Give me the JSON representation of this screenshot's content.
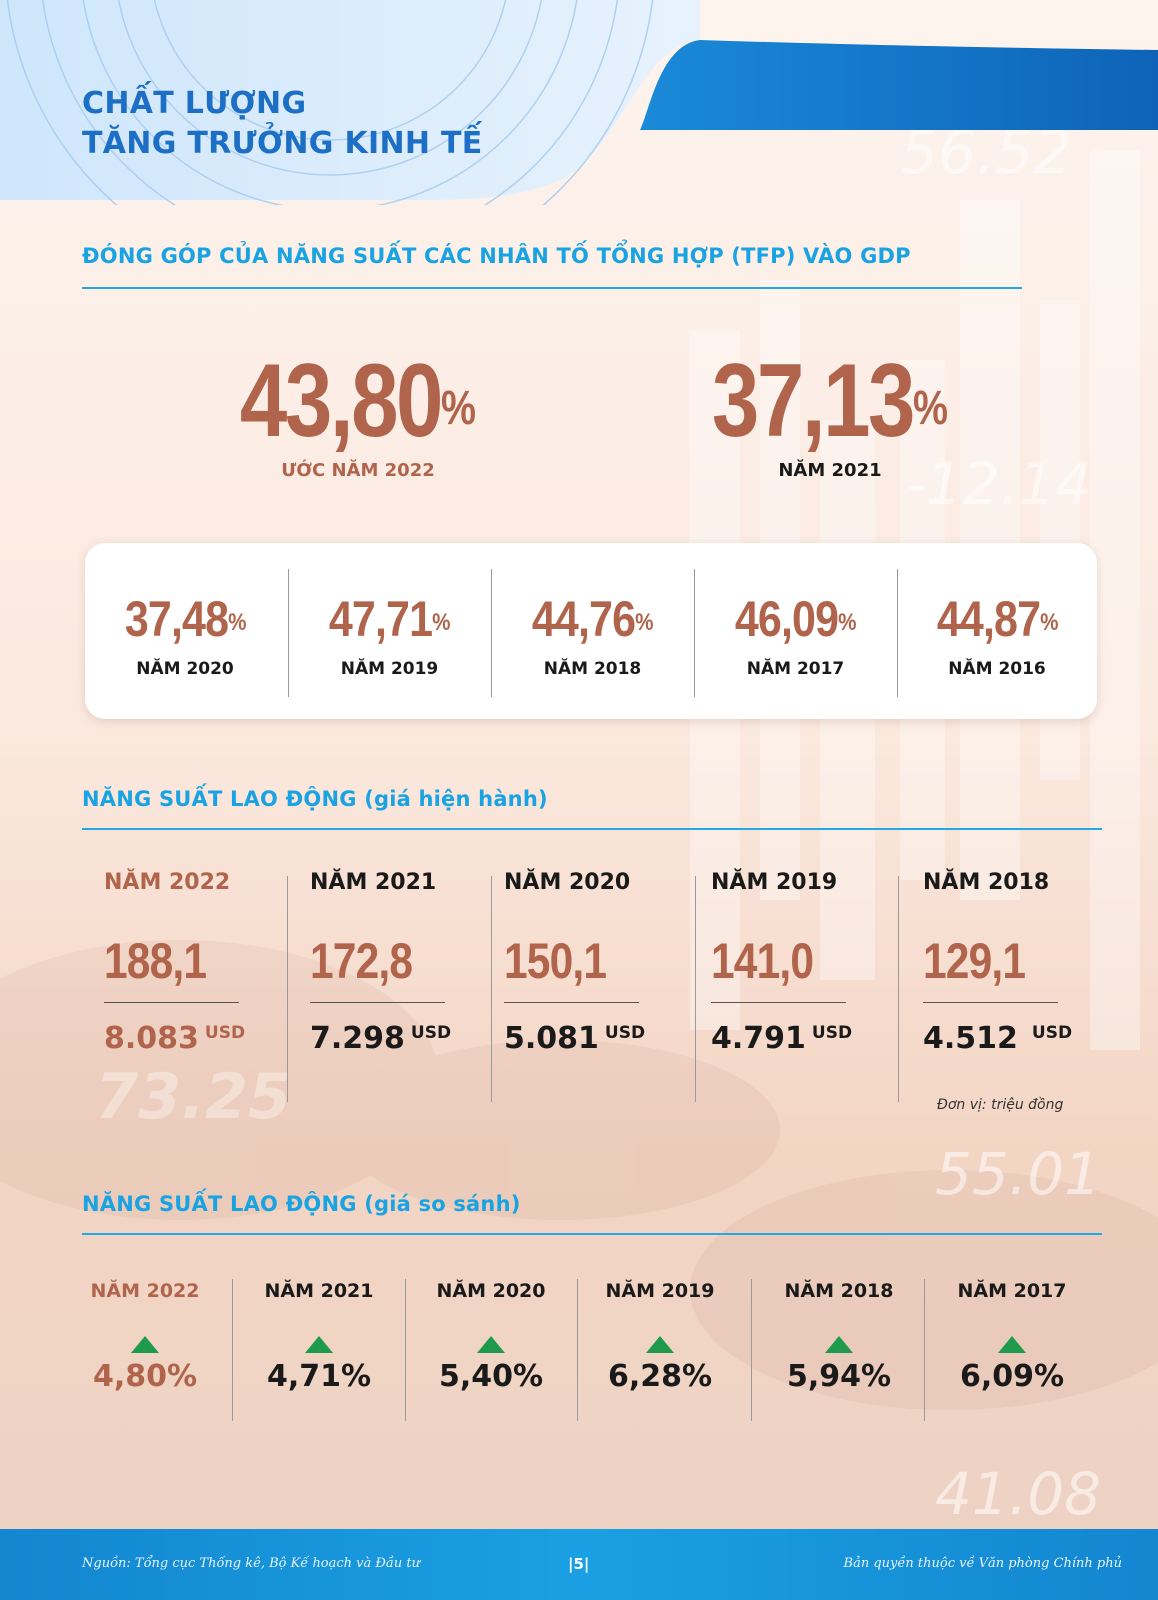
{
  "header": {
    "title_line1": "CHẤT LƯỢNG",
    "title_line2": "TĂNG TRƯỞNG KINH TẾ"
  },
  "tfp": {
    "heading": "ĐÓNG GÓP CỦA NĂNG SUẤT CÁC NHÂN TỐ TỔNG HỢP (TFP) VÀO GDP",
    "highlight": [
      {
        "value": "43,80",
        "unit": "%",
        "label": "ƯỚC NĂM 2022"
      },
      {
        "value": "37,13",
        "unit": "%",
        "label": "NĂM 2021"
      }
    ],
    "history": [
      {
        "value": "37,48",
        "unit": "%",
        "label": "NĂM 2020"
      },
      {
        "value": "47,71",
        "unit": "%",
        "label": "NĂM 2019"
      },
      {
        "value": "44,76",
        "unit": "%",
        "label": "NĂM 2018"
      },
      {
        "value": "46,09",
        "unit": "%",
        "label": "NĂM 2017"
      },
      {
        "value": "44,87",
        "unit": "%",
        "label": "NĂM 2016"
      }
    ]
  },
  "labor_current": {
    "heading": "NĂNG SUẤT LAO ĐỘNG",
    "heading_sub": "(giá hiện hành)",
    "unit_note": "Đơn vị: triệu đồng",
    "items": [
      {
        "year": "NĂM 2022",
        "value": "188,1",
        "usd": "8.083",
        "usd_unit": "USD"
      },
      {
        "year": "NĂM 2021",
        "value": "172,8",
        "usd": "7.298",
        "usd_unit": "USD"
      },
      {
        "year": "NĂM 2020",
        "value": "150,1",
        "usd": "5.081",
        "usd_unit": "USD"
      },
      {
        "year": "NĂM 2019",
        "value": "141,0",
        "usd": "4.791",
        "usd_unit": "USD"
      },
      {
        "year": "NĂM 2018",
        "value": "129,1",
        "usd": "4.512",
        "usd_unit": "USD"
      }
    ]
  },
  "labor_compare": {
    "heading": "NĂNG SUẤT LAO ĐỘNG",
    "heading_sub": "(giá so sánh)",
    "items": [
      {
        "year": "NĂM 2022",
        "percent": "4,80%"
      },
      {
        "year": "NĂM 2021",
        "percent": "4,71%"
      },
      {
        "year": "NĂM 2020",
        "percent": "5,40%"
      },
      {
        "year": "NĂM 2019",
        "percent": "6,28%"
      },
      {
        "year": "NĂM 2018",
        "percent": "5,94%"
      },
      {
        "year": "NĂM 2017",
        "percent": "6,09%"
      }
    ]
  },
  "background_numbers": [
    "56.52",
    "-12.14",
    "73.25",
    "55.01",
    "41.08"
  ],
  "footer": {
    "source": "Nguồn: Tổng cục Thống kê, Bộ Kế hoạch và Đầu tư",
    "page": "|5|",
    "copyright": "Bản quyền thuộc về Văn phòng Chính phủ"
  },
  "colors": {
    "brand_blue": "#1d6fc5",
    "section_blue": "#1aa3e3",
    "accent_brown": "#b0644c",
    "up_green": "#1f9a4c"
  }
}
